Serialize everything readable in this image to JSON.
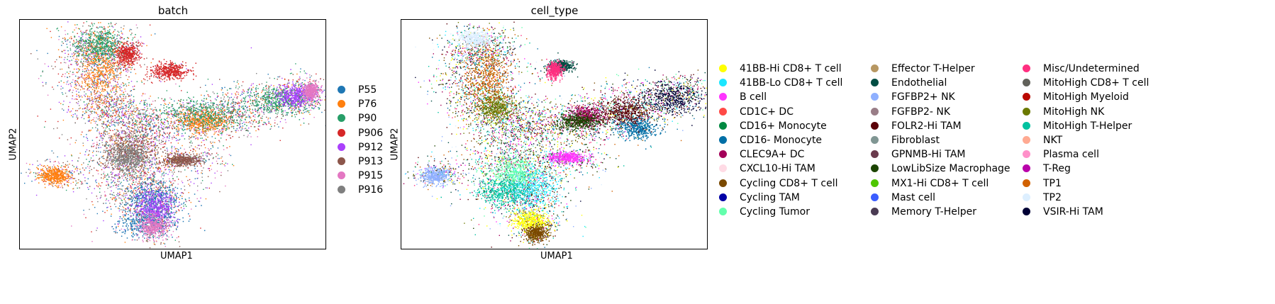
{
  "panels": [
    {
      "title": "batch",
      "xlabel": "UMAP1",
      "ylabel": "UMAP2"
    },
    {
      "title": "cell_type",
      "xlabel": "UMAP1",
      "ylabel": "UMAP2"
    }
  ],
  "legend_batch": [
    {
      "label": "P55",
      "color": "#1f77b4"
    },
    {
      "label": "P76",
      "color": "#ff7f0e"
    },
    {
      "label": "P90",
      "color": "#279e68"
    },
    {
      "label": "P906",
      "color": "#d62728"
    },
    {
      "label": "P912",
      "color": "#aa40fc"
    },
    {
      "label": "P913",
      "color": "#8c564b"
    },
    {
      "label": "P915",
      "color": "#e377c2"
    },
    {
      "label": "P916",
      "color": "#7f7f7f"
    }
  ],
  "legend_cell_type": [
    {
      "label": "41BB-Hi CD8+ T cell",
      "color": "#ffff00"
    },
    {
      "label": "41BB-Lo CD8+ T cell",
      "color": "#1ce6ff"
    },
    {
      "label": "B cell",
      "color": "#ff34ff"
    },
    {
      "label": "CD1C+ DC",
      "color": "#ff4a46"
    },
    {
      "label": "CD16+ Monocyte",
      "color": "#008941"
    },
    {
      "label": "CD16- Monocyte",
      "color": "#006fa6"
    },
    {
      "label": "CLEC9A+ DC",
      "color": "#a30059"
    },
    {
      "label": "CXCL10-Hi TAM",
      "color": "#ffdbe5"
    },
    {
      "label": "Cycling CD8+ T cell",
      "color": "#7a4900"
    },
    {
      "label": "Cycling TAM",
      "color": "#0000a6"
    },
    {
      "label": "Cycling Tumor",
      "color": "#63ffac"
    },
    {
      "label": "Effector T-Helper",
      "color": "#b79762"
    },
    {
      "label": "Endothelial",
      "color": "#004d43"
    },
    {
      "label": "FGFBP2+ NK",
      "color": "#8fb0ff"
    },
    {
      "label": "FGFBP2- NK",
      "color": "#997d87"
    },
    {
      "label": "FOLR2-Hi TAM",
      "color": "#5a0007"
    },
    {
      "label": "Fibroblast",
      "color": "#809693"
    },
    {
      "label": "GPNMB-Hi TAM",
      "color": "#6a3a4c"
    },
    {
      "label": "LowLibSize Macrophage",
      "color": "#1b4400"
    },
    {
      "label": "MX1-Hi CD8+ T cell",
      "color": "#4fc601"
    },
    {
      "label": "Mast cell",
      "color": "#3b5dff"
    },
    {
      "label": "Memory T-Helper",
      "color": "#4a3b53"
    },
    {
      "label": "Misc/Undetermined",
      "color": "#ff2f80"
    },
    {
      "label": "MitoHigh CD8+ T cell",
      "color": "#61615a"
    },
    {
      "label": "MitoHigh Myeloid",
      "color": "#ba0900"
    },
    {
      "label": "MitoHigh NK",
      "color": "#6b7900"
    },
    {
      "label": "MitoHigh T-Helper",
      "color": "#00c2a0"
    },
    {
      "label": "NKT",
      "color": "#ffaa92"
    },
    {
      "label": "Plasma cell",
      "color": "#ff90c9"
    },
    {
      "label": "T-Reg",
      "color": "#b903aa"
    },
    {
      "label": "TP1",
      "color": "#d16100"
    },
    {
      "label": "TP2",
      "color": "#ddefff"
    },
    {
      "label": "VSIR-Hi TAM",
      "color": "#000035"
    }
  ],
  "chart_data": [
    {
      "type": "scatter",
      "title": "batch",
      "xlabel": "UMAP1",
      "ylabel": "UMAP2",
      "grid": false,
      "legend_placement": "right",
      "x_ticks": "none",
      "y_ticks": "none",
      "series": [
        {
          "name": "P55",
          "color": "#1f77b4",
          "regions": [
            [
              0.43,
              0.78,
              0.07,
              0.06
            ],
            [
              0.42,
              0.88,
              0.08,
              0.05
            ]
          ]
        },
        {
          "name": "P76",
          "color": "#ff7f0e",
          "regions": [
            [
              0.26,
              0.22,
              0.06,
              0.12
            ],
            [
              0.11,
              0.68,
              0.04,
              0.03
            ],
            [
              0.6,
              0.44,
              0.07,
              0.04
            ]
          ]
        },
        {
          "name": "P90",
          "color": "#279e68",
          "regions": [
            [
              0.26,
              0.11,
              0.07,
              0.06
            ],
            [
              0.6,
              0.41,
              0.12,
              0.06
            ],
            [
              0.85,
              0.35,
              0.09,
              0.05
            ]
          ]
        },
        {
          "name": "P906",
          "color": "#d62728",
          "regions": [
            [
              0.35,
              0.15,
              0.03,
              0.04
            ],
            [
              0.49,
              0.22,
              0.05,
              0.03
            ]
          ]
        },
        {
          "name": "P912",
          "color": "#aa40fc",
          "regions": [
            [
              0.9,
              0.33,
              0.05,
              0.04
            ],
            [
              0.44,
              0.82,
              0.05,
              0.06
            ]
          ]
        },
        {
          "name": "P913",
          "color": "#8c564b",
          "regions": [
            [
              0.36,
              0.57,
              0.08,
              0.08
            ],
            [
              0.53,
              0.61,
              0.05,
              0.02
            ]
          ]
        },
        {
          "name": "P915",
          "color": "#e377c2",
          "regions": [
            [
              0.95,
              0.31,
              0.02,
              0.03
            ],
            [
              0.43,
              0.9,
              0.04,
              0.04
            ]
          ]
        },
        {
          "name": "P916",
          "color": "#7f7f7f",
          "regions": [
            [
              0.35,
              0.6,
              0.05,
              0.05
            ]
          ]
        }
      ]
    },
    {
      "type": "scatter",
      "title": "cell_type",
      "xlabel": "UMAP1",
      "ylabel": "UMAP2",
      "grid": false,
      "legend_placement": "right",
      "x_ticks": "none",
      "y_ticks": "none",
      "series": [
        {
          "name": "41BB-Hi CD8+ T cell",
          "color": "#ffff00",
          "regions": [
            [
              0.42,
              0.88,
              0.05,
              0.04
            ]
          ]
        },
        {
          "name": "41BB-Lo CD8+ T cell",
          "color": "#1ce6ff",
          "regions": [
            [
              0.42,
              0.73,
              0.08,
              0.07
            ]
          ]
        },
        {
          "name": "B cell",
          "color": "#ff34ff",
          "regions": [
            [
              0.54,
              0.6,
              0.05,
              0.02
            ]
          ]
        },
        {
          "name": "CD16- Monocyte",
          "color": "#006fa6",
          "regions": [
            [
              0.77,
              0.47,
              0.05,
              0.04
            ]
          ]
        },
        {
          "name": "CLEC9A+ DC",
          "color": "#a30059",
          "regions": [
            [
              0.6,
              0.42,
              0.05,
              0.04
            ]
          ]
        },
        {
          "name": "Cycling CD8+ T cell",
          "color": "#7a4900",
          "regions": [
            [
              0.44,
              0.93,
              0.03,
              0.03
            ]
          ]
        },
        {
          "name": "Cycling Tumor",
          "color": "#63ffac",
          "regions": [
            [
              0.37,
              0.66,
              0.06,
              0.06
            ]
          ]
        },
        {
          "name": "Endothelial",
          "color": "#004d43",
          "regions": [
            [
              0.52,
              0.2,
              0.03,
              0.02
            ]
          ]
        },
        {
          "name": "FGFBP2+ NK",
          "color": "#8fb0ff",
          "regions": [
            [
              0.11,
              0.68,
              0.04,
              0.03
            ]
          ]
        },
        {
          "name": "FOLR2-Hi TAM",
          "color": "#5a0007",
          "regions": [
            [
              0.73,
              0.4,
              0.07,
              0.05
            ]
          ]
        },
        {
          "name": "LowLibSize Macrophage",
          "color": "#1b4400",
          "regions": [
            [
              0.58,
              0.44,
              0.06,
              0.03
            ]
          ]
        },
        {
          "name": "Misc/Undetermined",
          "color": "#ff2f80",
          "regions": [
            [
              0.5,
              0.22,
              0.02,
              0.03
            ]
          ]
        },
        {
          "name": "MitoHigh NK",
          "color": "#6b7900",
          "regions": [
            [
              0.3,
              0.38,
              0.05,
              0.05
            ]
          ]
        },
        {
          "name": "MitoHigh T-Helper",
          "color": "#00c2a0",
          "regions": [
            [
              0.33,
              0.75,
              0.07,
              0.05
            ]
          ]
        },
        {
          "name": "TP1",
          "color": "#d16100",
          "regions": [
            [
              0.28,
              0.25,
              0.06,
              0.1
            ]
          ]
        },
        {
          "name": "TP2",
          "color": "#ddefff",
          "regions": [
            [
              0.24,
              0.08,
              0.05,
              0.03
            ]
          ]
        },
        {
          "name": "VSIR-Hi TAM",
          "color": "#000035",
          "regions": [
            [
              0.88,
              0.34,
              0.08,
              0.06
            ]
          ]
        }
      ]
    }
  ]
}
